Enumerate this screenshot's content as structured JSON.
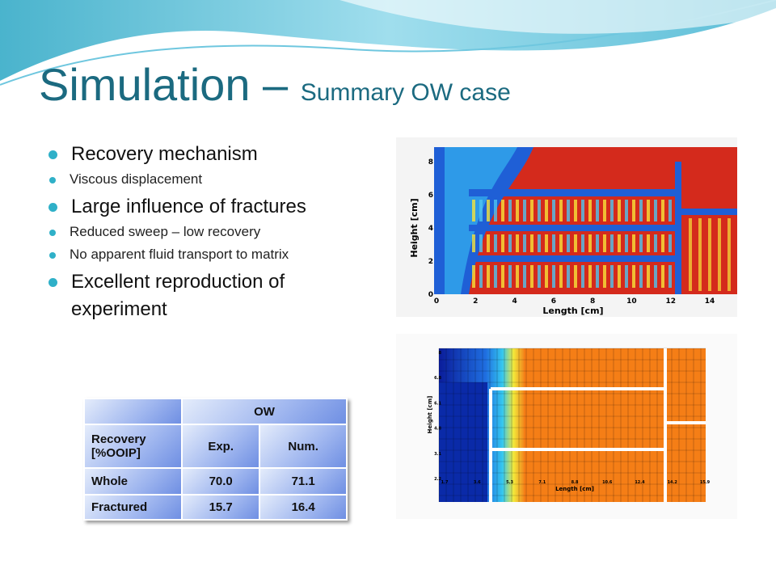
{
  "header": {
    "title": "Simulation –",
    "subtitle": "Summary OW case"
  },
  "bullets": [
    {
      "text": "Recovery mechanism",
      "sub": [
        "Viscous displacement"
      ]
    },
    {
      "text": "Large influence of fractures",
      "sub": [
        "Reduced sweep – low recovery",
        "No apparent fluid transport to matrix"
      ]
    },
    {
      "text": "Excellent reproduction of experiment"
    }
  ],
  "table": {
    "group_header": "OW",
    "columns": [
      "Recovery [%OOIP]",
      "Exp.",
      "Num."
    ],
    "rows": [
      [
        "Whole",
        "70.0",
        "71.1"
      ],
      [
        "Fractured",
        "15.7",
        "16.4"
      ]
    ]
  },
  "figure_top": {
    "y_label": "Height [cm]",
    "x_label": "Length [cm]",
    "xticks": [
      0,
      2,
      4,
      6,
      8,
      10,
      12,
      14
    ],
    "yticks": [
      0,
      2,
      4,
      6,
      8
    ]
  },
  "figure_bottom": {
    "y_label": "Height [cm]",
    "x_label": "Length [cm]",
    "xticks": [
      1.7,
      3.6,
      5.3,
      7.1,
      8.8,
      10.6,
      12.4,
      14.2,
      15.9
    ],
    "yticks": [
      8,
      6.8,
      6.1,
      4.8,
      3.1,
      2.2
    ]
  }
}
